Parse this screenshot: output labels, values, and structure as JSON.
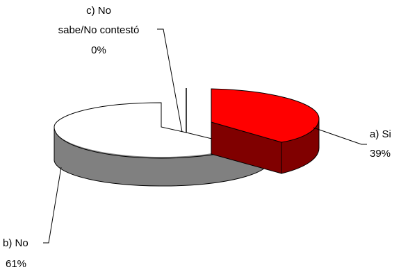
{
  "chart_data": {
    "type": "pie",
    "style": "3d-exploded",
    "slices": [
      {
        "category": "a) Si",
        "percent_label": "39%",
        "value": 39,
        "color": "#ff0000",
        "side_color": "#800000"
      },
      {
        "category": "b) No",
        "percent_label": "61%",
        "value": 61,
        "color": "#ffffff",
        "side_color": "#808080"
      },
      {
        "category_lines": [
          "c) No",
          "sabe/No contestó"
        ],
        "percent_label": "0%",
        "value": 0,
        "color": "#ffffff",
        "side_color": "#808080"
      }
    ],
    "legend": "none"
  }
}
